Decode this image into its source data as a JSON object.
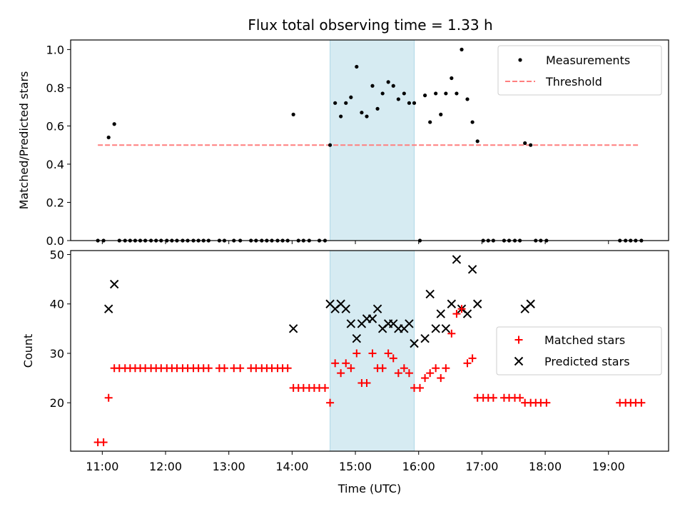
{
  "chart_data": {
    "title": "Flux total observing time = 1.33 h",
    "xlabel": "Time (UTC)",
    "x_unit": "hour_utc",
    "x_range": [
      10.5,
      19.95
    ],
    "x_ticks": [
      {
        "value": 11,
        "label": "11:00"
      },
      {
        "value": 12,
        "label": "12:00"
      },
      {
        "value": 13,
        "label": "13:00"
      },
      {
        "value": 14,
        "label": "14:00"
      },
      {
        "value": 15,
        "label": "15:00"
      },
      {
        "value": 16,
        "label": "16:00"
      },
      {
        "value": 17,
        "label": "17:00"
      },
      {
        "value": 18,
        "label": "18:00"
      },
      {
        "value": 19,
        "label": "19:00"
      }
    ],
    "shaded_span": {
      "x0": 14.6,
      "x1": 15.93,
      "color": "#add8e6"
    },
    "panels": [
      {
        "name": "ratio",
        "type": "scatter",
        "ylabel": "Matched/Predicted stars",
        "ylim": [
          0,
          1.05
        ],
        "y_ticks": [
          {
            "value": 0,
            "label": "0.0"
          },
          {
            "value": 0.2,
            "label": "0.2"
          },
          {
            "value": 0.4,
            "label": "0.4"
          },
          {
            "value": 0.6,
            "label": "0.6"
          },
          {
            "value": 0.8,
            "label": "0.8"
          },
          {
            "value": 1.0,
            "label": "1.0"
          }
        ],
        "legend": {
          "placement": "upper right",
          "entries": [
            {
              "label": "Measurements",
              "marker": "dot",
              "color": "#000000"
            },
            {
              "label": "Threshold",
              "marker": "dashed-line",
              "color": "#ff7f7f"
            }
          ]
        },
        "threshold": {
          "y": 0.5,
          "x0": 10.93,
          "x1": 19.48,
          "color": "#ff7f7f"
        },
        "measurements": {
          "x": [
            10.93,
            11.02,
            11.1,
            11.19,
            11.27,
            11.36,
            11.44,
            11.52,
            11.6,
            11.68,
            11.77,
            11.85,
            11.93,
            12.02,
            12.1,
            12.18,
            12.27,
            12.35,
            12.44,
            12.52,
            12.6,
            12.68,
            12.85,
            12.93,
            13.08,
            13.18,
            13.35,
            13.43,
            13.52,
            13.6,
            13.68,
            13.77,
            13.85,
            13.93,
            14.02,
            14.1,
            14.18,
            14.27,
            14.43,
            14.52,
            14.6,
            14.68,
            14.77,
            14.85,
            14.93,
            15.02,
            15.1,
            15.18,
            15.27,
            15.35,
            15.43,
            15.52,
            15.6,
            15.68,
            15.77,
            15.85,
            15.93,
            16.02,
            16.1,
            16.18,
            16.27,
            16.35,
            16.43,
            16.52,
            16.6,
            16.68,
            16.77,
            16.85,
            16.93,
            17.02,
            17.1,
            17.18,
            17.35,
            17.43,
            17.52,
            17.6,
            17.68,
            17.77,
            17.85,
            17.93,
            18.02,
            19.18,
            19.27,
            19.35,
            19.43,
            19.52
          ],
          "y": [
            0,
            0,
            0.54,
            0.61,
            0,
            0,
            0,
            0,
            0,
            0,
            0,
            0,
            0,
            0,
            0,
            0,
            0,
            0,
            0,
            0,
            0,
            0,
            0,
            0,
            0,
            0,
            0,
            0,
            0,
            0,
            0,
            0,
            0,
            0,
            0.66,
            0,
            0,
            0,
            0,
            0,
            0.5,
            0.72,
            0.65,
            0.72,
            0.75,
            0.91,
            0.67,
            0.65,
            0.81,
            0.69,
            0.77,
            0.83,
            0.81,
            0.74,
            0.77,
            0.72,
            0.72,
            0,
            0.76,
            0.62,
            0.77,
            0.66,
            0.77,
            0.85,
            0.77,
            1.0,
            0.74,
            0.62,
            0.52,
            0,
            0,
            0,
            0,
            0,
            0,
            0,
            0.51,
            0.5,
            0,
            0,
            0,
            0,
            0,
            0,
            0,
            0
          ]
        }
      },
      {
        "name": "counts",
        "type": "scatter",
        "ylabel": "Count",
        "ylim": [
          10.2,
          50.8
        ],
        "y_ticks": [
          {
            "value": 20,
            "label": "20"
          },
          {
            "value": 30,
            "label": "30"
          },
          {
            "value": 40,
            "label": "40"
          },
          {
            "value": 50,
            "label": "50"
          }
        ],
        "legend": {
          "placement": "center right",
          "entries": [
            {
              "label": "Matched stars",
              "marker": "plus",
              "color": "#ff0000"
            },
            {
              "label": "Predicted stars",
              "marker": "x",
              "color": "#000000"
            }
          ]
        },
        "series": [
          {
            "name": "Matched stars",
            "marker": "plus",
            "color": "#ff0000",
            "x": [
              10.93,
              11.02,
              11.1,
              11.19,
              11.27,
              11.36,
              11.44,
              11.52,
              11.6,
              11.68,
              11.77,
              11.85,
              11.93,
              12.02,
              12.1,
              12.18,
              12.27,
              12.35,
              12.44,
              12.52,
              12.6,
              12.68,
              12.85,
              12.93,
              13.08,
              13.18,
              13.35,
              13.43,
              13.52,
              13.6,
              13.68,
              13.77,
              13.85,
              13.93,
              14.02,
              14.1,
              14.18,
              14.27,
              14.35,
              14.43,
              14.52,
              14.6,
              14.68,
              14.77,
              14.85,
              14.93,
              15.02,
              15.1,
              15.18,
              15.27,
              15.35,
              15.43,
              15.52,
              15.6,
              15.68,
              15.77,
              15.85,
              15.93,
              16.02,
              16.1,
              16.18,
              16.27,
              16.35,
              16.43,
              16.52,
              16.6,
              16.68,
              16.77,
              16.85,
              16.93,
              17.02,
              17.1,
              17.18,
              17.35,
              17.43,
              17.52,
              17.6,
              17.68,
              17.77,
              17.85,
              17.93,
              18.02,
              19.18,
              19.27,
              19.35,
              19.43,
              19.52
            ],
            "y": [
              12,
              12,
              21,
              27,
              27,
              27,
              27,
              27,
              27,
              27,
              27,
              27,
              27,
              27,
              27,
              27,
              27,
              27,
              27,
              27,
              27,
              27,
              27,
              27,
              27,
              27,
              27,
              27,
              27,
              27,
              27,
              27,
              27,
              27,
              23,
              23,
              23,
              23,
              23,
              23,
              23,
              20,
              28,
              26,
              28,
              27,
              30,
              24,
              24,
              30,
              27,
              27,
              30,
              29,
              26,
              27,
              26,
              23,
              23,
              25,
              26,
              27,
              25,
              27,
              34,
              38,
              39,
              28,
              29,
              21,
              21,
              21,
              21,
              21,
              21,
              21,
              21,
              20,
              20,
              20,
              20,
              20,
              20,
              20,
              20,
              20,
              20
            ]
          },
          {
            "name": "Predicted stars",
            "marker": "x",
            "color": "#000000",
            "x": [
              11.1,
              11.19,
              14.02,
              14.6,
              14.68,
              14.77,
              14.85,
              14.93,
              15.02,
              15.1,
              15.18,
              15.27,
              15.35,
              15.43,
              15.52,
              15.6,
              15.68,
              15.77,
              15.85,
              15.93,
              16.1,
              16.18,
              16.27,
              16.35,
              16.43,
              16.52,
              16.6,
              16.68,
              16.77,
              16.85,
              16.93,
              17.68,
              17.77
            ],
            "y": [
              39,
              44,
              35,
              40,
              39,
              40,
              39,
              36,
              33,
              36,
              37,
              37,
              39,
              35,
              36,
              36,
              35,
              35,
              36,
              32,
              33,
              42,
              35,
              38,
              35,
              40,
              49,
              39,
              38,
              47,
              40,
              39,
              40
            ]
          }
        ]
      }
    ]
  }
}
